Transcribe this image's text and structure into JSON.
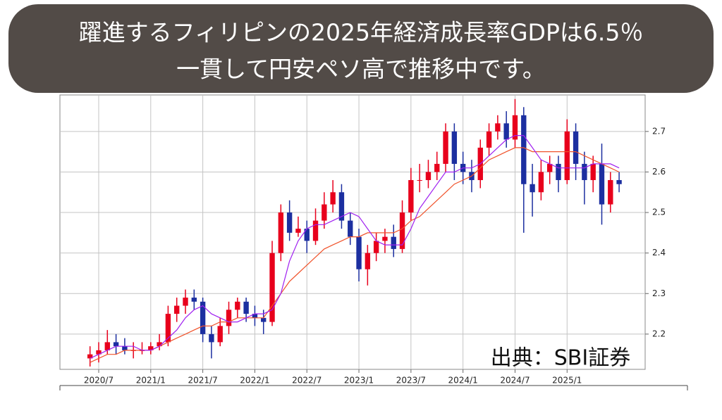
{
  "chart_data": {
    "type": "candlestick",
    "title": "躍進するフィリピンの2025年経済成長率GDPは6.5％",
    "subtitle": "一貫して円安ペソ高で推移中です。",
    "source": "出典：SBI証券",
    "x": [
      5,
      6,
      7,
      8,
      9,
      10,
      11,
      12,
      13,
      14,
      15,
      16,
      17,
      18,
      19,
      20,
      21,
      22,
      23,
      24,
      25,
      26,
      27,
      28,
      29,
      30,
      31,
      32,
      33,
      34,
      35,
      36,
      37,
      38,
      39,
      40,
      41,
      42,
      43,
      44,
      45,
      46,
      47,
      48,
      49,
      50,
      51,
      52,
      53,
      54,
      55,
      56,
      57,
      58,
      59,
      60,
      61,
      62,
      63,
      64,
      65,
      66
    ],
    "open": [
      2.14,
      2.15,
      2.16,
      2.18,
      2.17,
      2.16,
      2.16,
      2.16,
      2.17,
      2.18,
      2.25,
      2.27,
      2.29,
      2.28,
      2.2,
      2.18,
      2.22,
      2.26,
      2.28,
      2.25,
      2.24,
      2.23,
      2.4,
      2.5,
      2.45,
      2.46,
      2.43,
      2.48,
      2.52,
      2.55,
      2.48,
      2.44,
      2.36,
      2.4,
      2.43,
      2.44,
      2.41,
      2.5,
      2.58,
      2.58,
      2.6,
      2.62,
      2.7,
      2.62,
      2.6,
      2.58,
      2.66,
      2.7,
      2.72,
      2.68,
      2.74,
      2.57,
      2.55,
      2.6,
      2.62,
      2.58,
      2.7,
      2.62,
      2.58,
      2.62,
      2.52,
      2.58
    ],
    "high": [
      2.17,
      2.18,
      2.21,
      2.2,
      2.19,
      2.18,
      2.18,
      2.18,
      2.2,
      2.27,
      2.29,
      2.31,
      2.31,
      2.29,
      2.22,
      2.24,
      2.28,
      2.29,
      2.29,
      2.27,
      2.26,
      2.43,
      2.52,
      2.53,
      2.49,
      2.48,
      2.51,
      2.55,
      2.58,
      2.57,
      2.5,
      2.46,
      2.42,
      2.45,
      2.46,
      2.47,
      2.53,
      2.61,
      2.62,
      2.63,
      2.65,
      2.72,
      2.72,
      2.65,
      2.63,
      2.68,
      2.72,
      2.74,
      2.75,
      2.78,
      2.76,
      2.62,
      2.63,
      2.64,
      2.64,
      2.73,
      2.72,
      2.65,
      2.64,
      2.67,
      2.6,
      2.6
    ],
    "low": [
      2.12,
      2.13,
      2.15,
      2.15,
      2.15,
      2.14,
      2.15,
      2.15,
      2.16,
      2.17,
      2.23,
      2.25,
      2.26,
      2.18,
      2.14,
      2.17,
      2.2,
      2.24,
      2.23,
      2.22,
      2.2,
      2.22,
      2.38,
      2.43,
      2.44,
      2.4,
      2.42,
      2.46,
      2.5,
      2.46,
      2.42,
      2.33,
      2.32,
      2.38,
      2.4,
      2.39,
      2.4,
      2.48,
      2.55,
      2.56,
      2.58,
      2.6,
      2.58,
      2.57,
      2.55,
      2.56,
      2.64,
      2.68,
      2.66,
      2.66,
      2.45,
      2.49,
      2.53,
      2.57,
      2.55,
      2.57,
      2.58,
      2.52,
      2.55,
      2.47,
      2.5,
      2.55
    ],
    "close": [
      2.15,
      2.16,
      2.18,
      2.17,
      2.16,
      2.16,
      2.16,
      2.17,
      2.18,
      2.25,
      2.27,
      2.29,
      2.28,
      2.2,
      2.18,
      2.22,
      2.26,
      2.28,
      2.25,
      2.24,
      2.23,
      2.4,
      2.5,
      2.45,
      2.46,
      2.43,
      2.48,
      2.52,
      2.55,
      2.48,
      2.44,
      2.36,
      2.4,
      2.43,
      2.44,
      2.41,
      2.5,
      2.58,
      2.58,
      2.6,
      2.62,
      2.7,
      2.62,
      2.6,
      2.58,
      2.66,
      2.7,
      2.72,
      2.68,
      2.74,
      2.57,
      2.55,
      2.6,
      2.62,
      2.58,
      2.7,
      2.62,
      2.58,
      2.62,
      2.52,
      2.58,
      2.57
    ],
    "up_color": "#e8001c",
    "down_color": "#1c2fa0",
    "lines": [
      {
        "color": "#f0522a",
        "values": [
          2.13,
          2.14,
          2.15,
          2.15,
          2.16,
          2.16,
          2.16,
          2.16,
          2.17,
          2.18,
          2.19,
          2.2,
          2.21,
          2.22,
          2.22,
          2.23,
          2.23,
          2.24,
          2.24,
          2.24,
          2.24,
          2.27,
          2.3,
          2.33,
          2.35,
          2.37,
          2.39,
          2.41,
          2.42,
          2.43,
          2.44,
          2.44,
          2.45,
          2.45,
          2.45,
          2.45,
          2.46,
          2.48,
          2.49,
          2.51,
          2.53,
          2.55,
          2.57,
          2.58,
          2.59,
          2.61,
          2.63,
          2.64,
          2.65,
          2.66,
          2.66,
          2.65,
          2.65,
          2.65,
          2.65,
          2.65,
          2.65,
          2.64,
          2.63,
          2.62,
          2.61,
          2.6
        ]
      },
      {
        "color": "#a020f0",
        "values": [
          2.14,
          2.15,
          2.16,
          2.17,
          2.17,
          2.17,
          2.16,
          2.16,
          2.17,
          2.19,
          2.21,
          2.24,
          2.26,
          2.27,
          2.25,
          2.24,
          2.23,
          2.23,
          2.24,
          2.25,
          2.25,
          2.26,
          2.3,
          2.38,
          2.43,
          2.46,
          2.47,
          2.47,
          2.48,
          2.49,
          2.5,
          2.49,
          2.46,
          2.43,
          2.42,
          2.42,
          2.42,
          2.46,
          2.51,
          2.54,
          2.57,
          2.6,
          2.6,
          2.61,
          2.61,
          2.62,
          2.64,
          2.66,
          2.68,
          2.69,
          2.69,
          2.66,
          2.63,
          2.62,
          2.61,
          2.61,
          2.61,
          2.61,
          2.62,
          2.62,
          2.62,
          2.61
        ]
      }
    ],
    "xlim": [
      1.53,
      69
    ],
    "xticks": [
      {
        "value": 6,
        "label": "2020/7"
      },
      {
        "value": 12,
        "label": "2021/1"
      },
      {
        "value": 18,
        "label": "2021/7"
      },
      {
        "value": 24,
        "label": "2022/1"
      },
      {
        "value": 30,
        "label": "2022/7"
      },
      {
        "value": 36,
        "label": "2023/1"
      },
      {
        "value": 42,
        "label": "2023/7"
      },
      {
        "value": 48,
        "label": "2024/1"
      },
      {
        "value": 54,
        "label": "2024/7"
      },
      {
        "value": 60,
        "label": "2025/1"
      }
    ],
    "ylim": [
      2.113,
      2.79
    ],
    "yticks": [
      2.2,
      2.3,
      2.4,
      2.5,
      2.6,
      2.7
    ],
    "grid": true
  }
}
